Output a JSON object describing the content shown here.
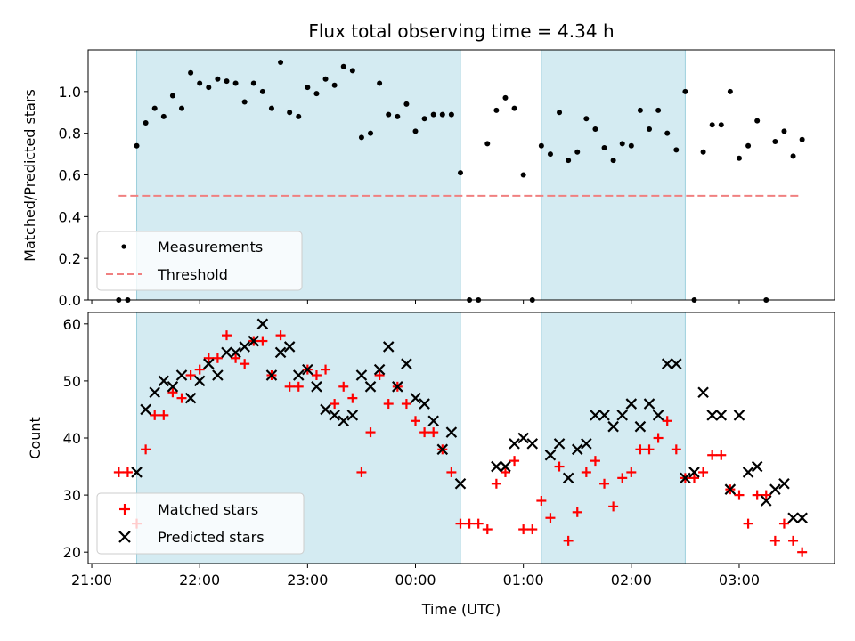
{
  "chart_data": [
    {
      "type": "scatter",
      "title": "Flux total observing time = 4.34 h",
      "ylabel": "Matched/Predicted stars",
      "ylim": [
        0,
        1.2
      ],
      "yticks": [
        "0.0",
        "0.2",
        "0.4",
        "0.6",
        "0.8",
        "1.0"
      ],
      "shaded_intervals": [
        [
          "21:25",
          "00:25"
        ],
        [
          "01:10",
          "02:30"
        ]
      ],
      "legend": {
        "placement": "lower-left",
        "entries": [
          "Measurements",
          "Threshold"
        ]
      },
      "colors": {
        "measurements": "#000000",
        "threshold": "#f08080",
        "shade": "#add8e6"
      },
      "series": [
        {
          "name": "Measurements",
          "x": [
            "21:15",
            "21:20",
            "21:25",
            "21:30",
            "21:35",
            "21:40",
            "21:45",
            "21:50",
            "21:55",
            "22:00",
            "22:05",
            "22:10",
            "22:15",
            "22:20",
            "22:25",
            "22:30",
            "22:35",
            "22:40",
            "22:45",
            "22:50",
            "22:55",
            "23:00",
            "23:05",
            "23:10",
            "23:15",
            "23:20",
            "23:25",
            "23:30",
            "23:35",
            "23:40",
            "23:45",
            "23:50",
            "23:55",
            "00:00",
            "00:05",
            "00:10",
            "00:15",
            "00:20",
            "00:25",
            "00:30",
            "00:35",
            "00:40",
            "00:45",
            "00:50",
            "00:55",
            "01:00",
            "01:05",
            "01:10",
            "01:15",
            "01:20",
            "01:25",
            "01:30",
            "01:35",
            "01:40",
            "01:45",
            "01:50",
            "01:55",
            "02:00",
            "02:05",
            "02:10",
            "02:15",
            "02:20",
            "02:25",
            "02:30",
            "02:35",
            "02:40",
            "02:45",
            "02:50",
            "02:55",
            "03:00",
            "03:05",
            "03:10",
            "03:15",
            "03:20",
            "03:25",
            "03:30",
            "03:35"
          ],
          "y": [
            0.0,
            0.0,
            0.74,
            0.85,
            0.92,
            0.88,
            0.98,
            0.92,
            1.09,
            1.04,
            1.02,
            1.06,
            1.05,
            1.04,
            0.95,
            1.04,
            1.0,
            0.92,
            1.14,
            0.9,
            0.88,
            1.02,
            0.99,
            1.06,
            1.03,
            1.12,
            1.1,
            0.78,
            0.8,
            1.04,
            0.89,
            0.88,
            0.94,
            0.81,
            0.87,
            0.89,
            0.89,
            0.89,
            0.61,
            0.0,
            0.0,
            0.75,
            0.91,
            0.97,
            0.92,
            0.6,
            0.0,
            0.74,
            0.7,
            0.9,
            0.67,
            0.71,
            0.87,
            0.82,
            0.73,
            0.67,
            0.75,
            0.74,
            0.91,
            0.82,
            0.91,
            0.8,
            0.72,
            1.0,
            0.0,
            0.71,
            0.84,
            0.84,
            1.0,
            0.68,
            0.74,
            0.86,
            0.0,
            0.76,
            0.81,
            0.69,
            0.77
          ]
        },
        {
          "name": "Threshold",
          "x": [
            "21:15",
            "03:35"
          ],
          "y": [
            0.5,
            0.5
          ]
        }
      ]
    },
    {
      "type": "scatter",
      "xlabel": "Time (UTC)",
      "ylabel": "Count",
      "ylim": [
        18,
        62
      ],
      "yticks": [
        "20",
        "30",
        "40",
        "50",
        "60"
      ],
      "xticks": [
        "21:00",
        "22:00",
        "23:00",
        "00:00",
        "01:00",
        "02:00",
        "03:00"
      ],
      "xrange": [
        "20:58",
        "03:53"
      ],
      "shaded_intervals": [
        [
          "21:25",
          "00:25"
        ],
        [
          "01:10",
          "02:30"
        ]
      ],
      "legend": {
        "placement": "lower-left",
        "entries": [
          "Matched stars",
          "Predicted stars"
        ]
      },
      "colors": {
        "matched": "#ff0000",
        "predicted": "#000000",
        "shade": "#add8e6"
      },
      "series": [
        {
          "name": "Matched stars",
          "x": [
            "21:15",
            "21:20",
            "21:25",
            "21:30",
            "21:35",
            "21:40",
            "21:45",
            "21:50",
            "21:55",
            "22:00",
            "22:05",
            "22:10",
            "22:15",
            "22:20",
            "22:25",
            "22:30",
            "22:35",
            "22:40",
            "22:45",
            "22:50",
            "22:55",
            "23:00",
            "23:05",
            "23:10",
            "23:15",
            "23:20",
            "23:25",
            "23:30",
            "23:35",
            "23:40",
            "23:45",
            "23:50",
            "23:55",
            "00:00",
            "00:05",
            "00:10",
            "00:15",
            "00:20",
            "00:25",
            "00:30",
            "00:35",
            "00:40",
            "00:45",
            "00:50",
            "00:55",
            "01:00",
            "01:05",
            "01:10",
            "01:15",
            "01:20",
            "01:25",
            "01:30",
            "01:35",
            "01:40",
            "01:45",
            "01:50",
            "01:55",
            "02:00",
            "02:05",
            "02:10",
            "02:15",
            "02:20",
            "02:25",
            "02:30",
            "02:35",
            "02:40",
            "02:45",
            "02:50",
            "02:55",
            "03:00",
            "03:05",
            "03:10",
            "03:15",
            "03:20",
            "03:25",
            "03:30",
            "03:35"
          ],
          "y": [
            34,
            34,
            25,
            38,
            44,
            44,
            48,
            47,
            51,
            52,
            54,
            54,
            58,
            54,
            53,
            57,
            57,
            51,
            58,
            49,
            49,
            52,
            51,
            52,
            46,
            49,
            47,
            34,
            41,
            51,
            46,
            49,
            46,
            43,
            41,
            41,
            38,
            34,
            25,
            25,
            25,
            24,
            32,
            34,
            36,
            24,
            24,
            29,
            26,
            35,
            22,
            27,
            34,
            36,
            32,
            28,
            33,
            34,
            38,
            38,
            40,
            43,
            38,
            33,
            33,
            34,
            37,
            37,
            31,
            30,
            25,
            30,
            30,
            22,
            25,
            22,
            20
          ]
        },
        {
          "name": "Predicted stars",
          "x": [
            "21:25",
            "21:30",
            "21:35",
            "21:40",
            "21:45",
            "21:50",
            "21:55",
            "22:00",
            "22:05",
            "22:10",
            "22:15",
            "22:20",
            "22:25",
            "22:30",
            "22:35",
            "22:40",
            "22:45",
            "22:50",
            "22:55",
            "23:00",
            "23:05",
            "23:10",
            "23:15",
            "23:20",
            "23:25",
            "23:30",
            "23:35",
            "23:40",
            "23:45",
            "23:50",
            "23:55",
            "00:00",
            "00:05",
            "00:10",
            "00:15",
            "00:20",
            "00:25",
            "00:45",
            "00:50",
            "00:55",
            "01:00",
            "01:05",
            "01:15",
            "01:20",
            "01:25",
            "01:30",
            "01:35",
            "01:40",
            "01:45",
            "01:50",
            "01:55",
            "02:00",
            "02:05",
            "02:10",
            "02:15",
            "02:20",
            "02:25",
            "02:30",
            "02:35",
            "02:40",
            "02:45",
            "02:50",
            "02:55",
            "03:00",
            "03:05",
            "03:10",
            "03:15",
            "03:20",
            "03:25",
            "03:30",
            "03:35"
          ],
          "y": [
            34,
            45,
            48,
            50,
            49,
            51,
            47,
            50,
            53,
            51,
            55,
            55,
            56,
            57,
            60,
            51,
            55,
            56,
            51,
            52,
            49,
            45,
            44,
            43,
            44,
            51,
            49,
            52,
            56,
            49,
            53,
            47,
            46,
            43,
            38,
            41,
            32,
            35,
            35,
            39,
            40,
            39,
            37,
            39,
            33,
            38,
            39,
            44,
            44,
            42,
            44,
            46,
            42,
            46,
            44,
            53,
            53,
            33,
            34,
            48,
            44,
            44,
            31,
            44,
            34,
            35,
            29,
            31,
            32,
            26,
            26
          ]
        }
      ]
    }
  ]
}
